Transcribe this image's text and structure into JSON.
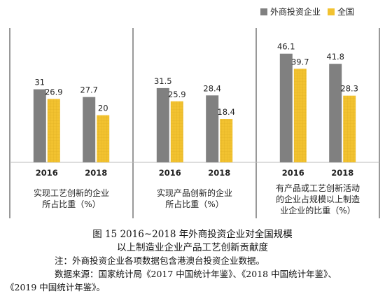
{
  "legend": {
    "series": [
      {
        "name": "外商投资企业",
        "color": "#808080"
      },
      {
        "name": "全国",
        "color": "#F2C230"
      }
    ]
  },
  "chart_data": {
    "type": "bar",
    "ylim": [
      0,
      50
    ],
    "grid": false,
    "legend_position": "top-right",
    "groups": [
      {
        "label_lines": [
          "实现工艺创新的企业",
          "所占比重（%）"
        ],
        "categories": [
          "2016",
          "2018"
        ],
        "series": [
          {
            "name": "外商投资企业",
            "values": [
              31,
              27.7
            ]
          },
          {
            "name": "全国",
            "values": [
              26.9,
              20
            ]
          }
        ]
      },
      {
        "label_lines": [
          "实现产品创新的企业",
          "所占比重（%）"
        ],
        "categories": [
          "2016",
          "2018"
        ],
        "series": [
          {
            "name": "外商投资企业",
            "values": [
              31.5,
              28.4
            ]
          },
          {
            "name": "全国",
            "values": [
              25.9,
              18.4
            ]
          }
        ]
      },
      {
        "label_lines": [
          "有产品或工艺创新活动",
          "的企业占规模以上制造",
          "业企业的比重（%）"
        ],
        "categories": [
          "2016",
          "2018"
        ],
        "series": [
          {
            "name": "外商投资企业",
            "values": [
              46.1,
              41.8
            ]
          },
          {
            "name": "全国",
            "values": [
              39.7,
              28.3
            ]
          }
        ]
      }
    ]
  },
  "caption": {
    "line1": "图 15  2016~2018 年外商投资企业对全国规模",
    "line2": "以上制造业企业产品工艺创新贡献度"
  },
  "notes": {
    "note": "注：外商投资企业各项数据包含港澳台投资企业数据。",
    "source1": "数据来源：国家统计局《2017 中国统计年鉴》、《2018 中国统计年鉴》、",
    "source2": "《2019 中国统计年鉴》。"
  }
}
